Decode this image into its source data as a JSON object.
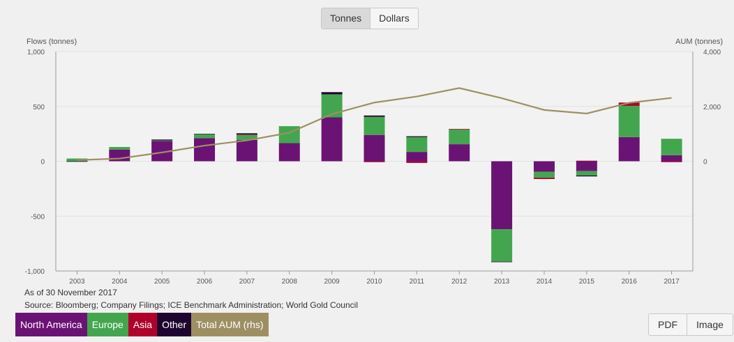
{
  "toggle": {
    "tonnes_label": "Tonnes",
    "dollars_label": "Dollars",
    "active": "Tonnes"
  },
  "notes": {
    "as_of": "As of 30 November 2017",
    "source": "Source: Bloomberg; Company Filings; ICE Benchmark Administration; World Gold Council"
  },
  "legend": [
    {
      "label": "North America",
      "color": "#6b1374"
    },
    {
      "label": "Europe",
      "color": "#43a64e"
    },
    {
      "label": "Asia",
      "color": "#b0002c"
    },
    {
      "label": "Other",
      "color": "#1e0530"
    },
    {
      "label": "Total AUM (rhs)",
      "color": "#9e8f63"
    }
  ],
  "export": {
    "pdf_label": "PDF",
    "image_label": "Image"
  },
  "chart_data": {
    "type": "bar",
    "stacked": true,
    "title": "",
    "ylabel": "Flows (tonnes)",
    "y2label": "AUM (tonnes)",
    "ylim": [
      -1000,
      1000
    ],
    "y2lim": [
      -4000,
      4000
    ],
    "yticks": [
      1000,
      500,
      0,
      -500,
      -1000
    ],
    "ytick_labels": [
      "1,000",
      "500",
      "0",
      "-500",
      "-1,000"
    ],
    "y2ticks": [
      4000,
      2000,
      0
    ],
    "y2tick_labels": [
      "4,000",
      "2,000",
      "0"
    ],
    "categories": [
      "2003",
      "2004",
      "2005",
      "2006",
      "2007",
      "2008",
      "2009",
      "2010",
      "2011",
      "2012",
      "2013",
      "2014",
      "2015",
      "2016",
      "2017"
    ],
    "series": [
      {
        "name": "North America",
        "color": "#6b1374",
        "values": [
          0,
          105,
          185,
          210,
          195,
          165,
          400,
          240,
          85,
          155,
          -620,
          -95,
          -90,
          220,
          55
        ]
      },
      {
        "name": "Europe",
        "color": "#43a64e",
        "values": [
          25,
          25,
          5,
          35,
          45,
          155,
          210,
          165,
          135,
          135,
          -295,
          -55,
          -40,
          285,
          150
        ]
      },
      {
        "name": "Asia",
        "color": "#b0002c",
        "values": [
          0,
          0,
          0,
          0,
          5,
          0,
          0,
          -8,
          -15,
          5,
          0,
          -12,
          5,
          30,
          -8
        ]
      },
      {
        "name": "Other",
        "color": "#1e0530",
        "values": [
          -5,
          0,
          8,
          5,
          10,
          0,
          20,
          12,
          8,
          0,
          -5,
          0,
          -8,
          0,
          0
        ]
      }
    ],
    "line": {
      "name": "Total AUM (rhs)",
      "color": "#9e8f63",
      "values": [
        40,
        100,
        320,
        570,
        760,
        1040,
        1720,
        2140,
        2360,
        2670,
        2300,
        1870,
        1740,
        2130,
        2310
      ]
    }
  }
}
